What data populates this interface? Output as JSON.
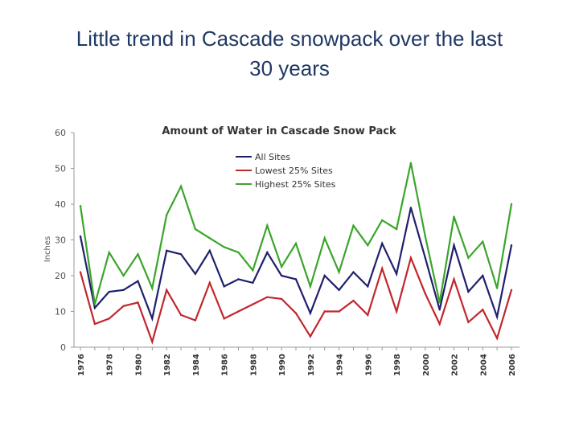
{
  "slide": {
    "title_line1": "Little trend in Cascade snowpack over the last",
    "title_line2": "30 years"
  },
  "chart_data": {
    "type": "line",
    "title": "Amount of Water in Cascade Snow Pack",
    "xlabel": "",
    "ylabel": "Inches",
    "ylim": [
      0,
      60
    ],
    "yticks": [
      0,
      10,
      20,
      30,
      40,
      50,
      60
    ],
    "xlim": [
      1976,
      2006
    ],
    "xticks": [
      1976,
      1978,
      1980,
      1982,
      1984,
      1986,
      1988,
      1990,
      1992,
      1994,
      1996,
      1998,
      2000,
      2002,
      2004,
      2006
    ],
    "x": [
      1976,
      1977,
      1978,
      1979,
      1980,
      1981,
      1982,
      1983,
      1984,
      1985,
      1986,
      1987,
      1988,
      1989,
      1990,
      1991,
      1992,
      1993,
      1994,
      1995,
      1996,
      1997,
      1998,
      1999,
      2000,
      2001,
      2002,
      2003,
      2004,
      2005,
      2006
    ],
    "legend_position": "top-center",
    "series": [
      {
        "name": "All Sites",
        "color": "#1f1f6e",
        "values": [
          31,
          11,
          15.5,
          16,
          18.5,
          8,
          27,
          26,
          20.5,
          27,
          17,
          19,
          18,
          26.5,
          20,
          19,
          9.5,
          20,
          16,
          21,
          17,
          29,
          20.5,
          39,
          25,
          10.5,
          28.5,
          15.5,
          20,
          8.5,
          28.5
        ]
      },
      {
        "name": "Lowest 25% Sites",
        "color": "#c0272d",
        "values": [
          21,
          6.5,
          8,
          11.5,
          12.5,
          1.5,
          16,
          9,
          7.5,
          18,
          8,
          10,
          12,
          14,
          13.5,
          9.5,
          3,
          10,
          10,
          13,
          9,
          22,
          10,
          25,
          15,
          6.5,
          19,
          7,
          10.5,
          2.5,
          16
        ]
      },
      {
        "name": "Highest 25% Sites",
        "color": "#3aa52a",
        "values": [
          39.5,
          12,
          26.5,
          20,
          26,
          16.5,
          37,
          45,
          33,
          30.5,
          28,
          26.5,
          21.5,
          34,
          22.5,
          29,
          17,
          30.5,
          21,
          34,
          28.5,
          35.5,
          33,
          51.5,
          31,
          12.5,
          36.5,
          25,
          29.5,
          16.5,
          40
        ]
      }
    ]
  }
}
